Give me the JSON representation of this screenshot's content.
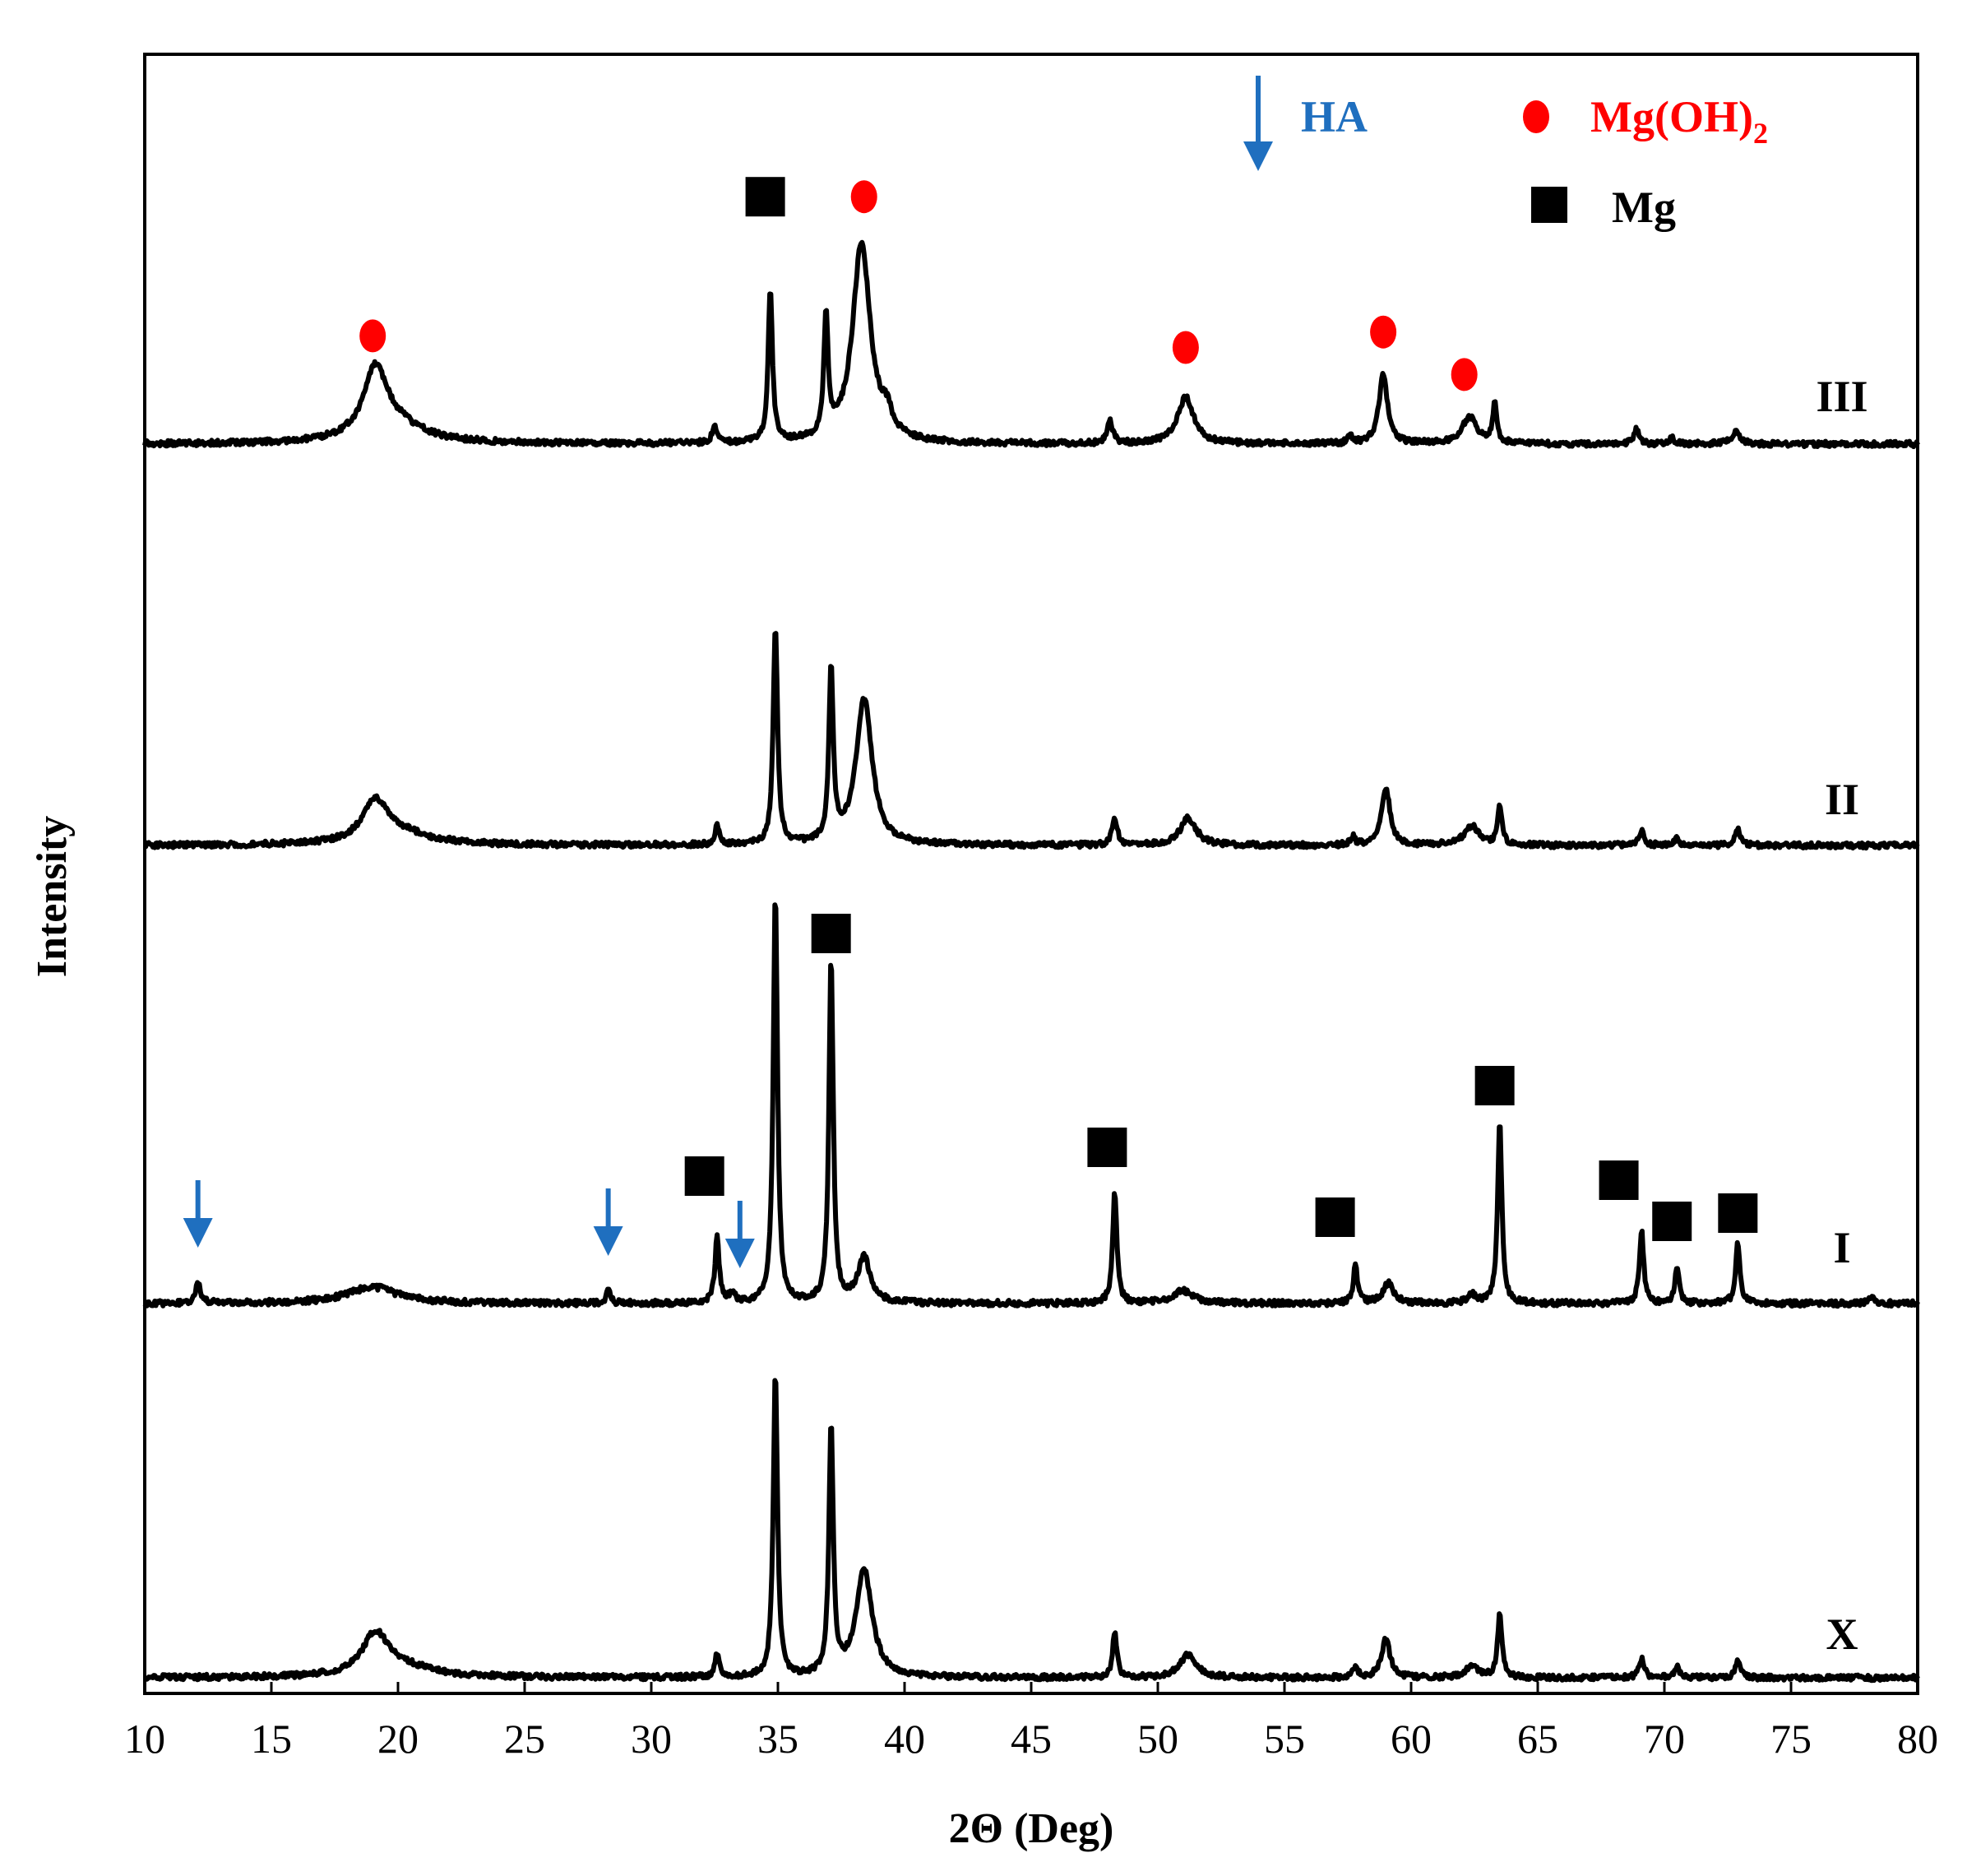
{
  "chart_data": {
    "type": "line",
    "title": "",
    "xlabel": "2Θ (Deg)",
    "ylabel": "Intensity",
    "xlim": [
      10,
      80
    ],
    "xticks": [
      10,
      15,
      20,
      25,
      30,
      35,
      40,
      45,
      50,
      55,
      60,
      65,
      70,
      75,
      80
    ],
    "y_ticks_shown": false,
    "grid": false,
    "legend": {
      "placement": "top-right",
      "entries": [
        {
          "symbol": "down-arrow",
          "color": "#1f6fbf",
          "label": "HA"
        },
        {
          "symbol": "circle",
          "color": "#ff0000",
          "label": "Mg(OH)",
          "label_sub": "2"
        },
        {
          "symbol": "square",
          "color": "#000000",
          "label": "Mg"
        }
      ]
    },
    "series": [
      {
        "name": "III",
        "baseline": 0,
        "peaks": [
          {
            "x": 19.1,
            "h": 0.17,
            "w": 0.55
          },
          {
            "x": 19.8,
            "h": 0.05,
            "w": 1.4
          },
          {
            "x": 32.5,
            "h": 0.05,
            "w": 0.1
          },
          {
            "x": 34.7,
            "h": 0.4,
            "w": 0.1
          },
          {
            "x": 36.9,
            "h": 0.31,
            "w": 0.1
          },
          {
            "x": 38.3,
            "h": 0.52,
            "w": 0.42
          },
          {
            "x": 39.3,
            "h": 0.05,
            "w": 0.25
          },
          {
            "x": 48.1,
            "h": 0.06,
            "w": 0.13
          },
          {
            "x": 51.1,
            "h": 0.12,
            "w": 0.38
          },
          {
            "x": 57.6,
            "h": 0.02,
            "w": 0.1
          },
          {
            "x": 58.9,
            "h": 0.18,
            "w": 0.2
          },
          {
            "x": 62.3,
            "h": 0.07,
            "w": 0.35
          },
          {
            "x": 63.3,
            "h": 0.1,
            "w": 0.1
          },
          {
            "x": 68.9,
            "h": 0.04,
            "w": 0.12
          },
          {
            "x": 70.3,
            "h": 0.02,
            "w": 0.1
          },
          {
            "x": 72.8,
            "h": 0.03,
            "w": 0.2
          }
        ]
      },
      {
        "name": "II",
        "baseline": 0,
        "peaks": [
          {
            "x": 19.1,
            "h": 0.1,
            "w": 0.6
          },
          {
            "x": 20.0,
            "h": 0.03,
            "w": 1.5
          },
          {
            "x": 32.6,
            "h": 0.05,
            "w": 0.1
          },
          {
            "x": 34.9,
            "h": 0.57,
            "w": 0.1
          },
          {
            "x": 37.1,
            "h": 0.45,
            "w": 0.1
          },
          {
            "x": 38.4,
            "h": 0.38,
            "w": 0.38
          },
          {
            "x": 48.3,
            "h": 0.07,
            "w": 0.12
          },
          {
            "x": 51.2,
            "h": 0.07,
            "w": 0.38
          },
          {
            "x": 57.7,
            "h": 0.02,
            "w": 0.1
          },
          {
            "x": 59.0,
            "h": 0.15,
            "w": 0.2
          },
          {
            "x": 62.4,
            "h": 0.05,
            "w": 0.35
          },
          {
            "x": 63.5,
            "h": 0.1,
            "w": 0.1
          },
          {
            "x": 69.1,
            "h": 0.04,
            "w": 0.12
          },
          {
            "x": 70.5,
            "h": 0.02,
            "w": 0.1
          },
          {
            "x": 72.9,
            "h": 0.04,
            "w": 0.12
          }
        ]
      },
      {
        "name": "I",
        "baseline": 0,
        "peaks": [
          {
            "x": 12.1,
            "h": 0.05,
            "w": 0.12
          },
          {
            "x": 19.0,
            "h": 0.04,
            "w": 1.2
          },
          {
            "x": 28.3,
            "h": 0.03,
            "w": 0.1
          },
          {
            "x": 32.6,
            "h": 0.16,
            "w": 0.1
          },
          {
            "x": 33.2,
            "h": 0.02,
            "w": 0.15
          },
          {
            "x": 34.9,
            "h": 1.0,
            "w": 0.1
          },
          {
            "x": 37.1,
            "h": 0.84,
            "w": 0.1
          },
          {
            "x": 38.4,
            "h": 0.11,
            "w": 0.3
          },
          {
            "x": 48.3,
            "h": 0.27,
            "w": 0.1
          },
          {
            "x": 51.0,
            "h": 0.03,
            "w": 0.5
          },
          {
            "x": 57.8,
            "h": 0.09,
            "w": 0.1
          },
          {
            "x": 59.1,
            "h": 0.05,
            "w": 0.25
          },
          {
            "x": 62.4,
            "h": 0.02,
            "w": 0.2
          },
          {
            "x": 63.5,
            "h": 0.44,
            "w": 0.1
          },
          {
            "x": 69.1,
            "h": 0.18,
            "w": 0.1
          },
          {
            "x": 70.5,
            "h": 0.09,
            "w": 0.1
          },
          {
            "x": 72.9,
            "h": 0.15,
            "w": 0.1
          },
          {
            "x": 78.2,
            "h": 0.02,
            "w": 0.12
          }
        ]
      },
      {
        "name": "X",
        "baseline": 0,
        "peaks": [
          {
            "x": 19.1,
            "h": 0.1,
            "w": 0.6
          },
          {
            "x": 20.0,
            "h": 0.03,
            "w": 1.5
          },
          {
            "x": 32.6,
            "h": 0.06,
            "w": 0.1
          },
          {
            "x": 34.9,
            "h": 0.79,
            "w": 0.1
          },
          {
            "x": 37.1,
            "h": 0.65,
            "w": 0.1
          },
          {
            "x": 38.4,
            "h": 0.28,
            "w": 0.38
          },
          {
            "x": 48.3,
            "h": 0.12,
            "w": 0.1
          },
          {
            "x": 51.2,
            "h": 0.06,
            "w": 0.38
          },
          {
            "x": 57.8,
            "h": 0.03,
            "w": 0.1
          },
          {
            "x": 59.0,
            "h": 0.1,
            "w": 0.2
          },
          {
            "x": 62.4,
            "h": 0.03,
            "w": 0.3
          },
          {
            "x": 63.5,
            "h": 0.17,
            "w": 0.1
          },
          {
            "x": 69.1,
            "h": 0.05,
            "w": 0.12
          },
          {
            "x": 70.5,
            "h": 0.03,
            "w": 0.1
          },
          {
            "x": 72.9,
            "h": 0.05,
            "w": 0.1
          }
        ]
      }
    ],
    "markers": [
      {
        "series": "III",
        "type": "circle",
        "x": 19.0,
        "label_height": 0.28
      },
      {
        "series": "III",
        "type": "square",
        "x": 34.5,
        "label_height": 0.64
      },
      {
        "series": "III",
        "type": "circle",
        "x": 38.4,
        "label_height": 0.64
      },
      {
        "series": "III",
        "type": "circle",
        "x": 51.1,
        "label_height": 0.25
      },
      {
        "series": "III",
        "type": "circle",
        "x": 58.9,
        "label_height": 0.29
      },
      {
        "series": "III",
        "type": "circle",
        "x": 62.1,
        "label_height": 0.18
      },
      {
        "series": "I",
        "type": "arrow",
        "x": 12.1,
        "label_height": 0.16
      },
      {
        "series": "I",
        "type": "arrow",
        "x": 28.3,
        "label_height": 0.14
      },
      {
        "series": "I",
        "type": "square",
        "x": 32.1,
        "label_height": 0.31
      },
      {
        "series": "I",
        "type": "arrow",
        "x": 33.5,
        "label_height": 0.11
      },
      {
        "series": "I",
        "type": "square",
        "x": 37.1,
        "label_height": 0.9
      },
      {
        "series": "I",
        "type": "square",
        "x": 48.0,
        "label_height": 0.38
      },
      {
        "series": "I",
        "type": "square",
        "x": 57.0,
        "label_height": 0.21
      },
      {
        "series": "I",
        "type": "square",
        "x": 63.3,
        "label_height": 0.53
      },
      {
        "series": "I",
        "type": "square",
        "x": 68.2,
        "label_height": 0.3
      },
      {
        "series": "I",
        "type": "square",
        "x": 70.3,
        "label_height": 0.2
      },
      {
        "series": "I",
        "type": "square",
        "x": 72.9,
        "label_height": 0.22
      }
    ],
    "colors": {
      "trace": "#000000",
      "ha_arrow": "#1f6fbf",
      "mg_oh2": "#ff0000",
      "mg": "#000000"
    }
  }
}
